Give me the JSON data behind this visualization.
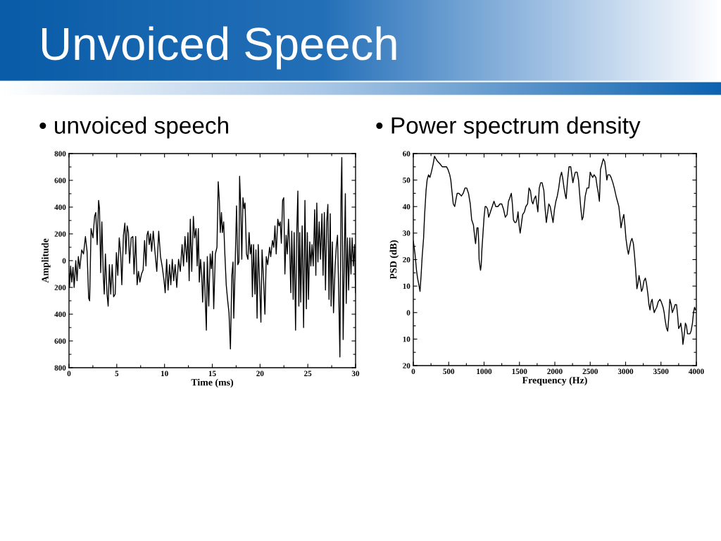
{
  "chart_data": [
    {
      "type": "line",
      "title": "Unvoiced Speech",
      "subtitle": "• unvoiced speech",
      "xlabel": "Time (ms)",
      "ylabel": "Amplitude",
      "color": "#000000",
      "line_style": "solid",
      "x": [
        0,
        0.05,
        0.17,
        0.29,
        0.42,
        0.54,
        0.71,
        0.84,
        0.98,
        1.13,
        1.33,
        1.52,
        1.72,
        1.89,
        2.06,
        2.16,
        2.31,
        2.51,
        2.68,
        2.8,
        2.95,
        3.1,
        3.19,
        3.32,
        3.44,
        3.59,
        3.69,
        3.81,
        3.98,
        4.1,
        4.23,
        4.37,
        4.52,
        4.67,
        4.84,
        4.96,
        5.11,
        5.26,
        5.41,
        5.53,
        5.7,
        5.85,
        5.95,
        6.09,
        6.22,
        6.34,
        6.51,
        6.68,
        6.81,
        6.98,
        7.13,
        7.27,
        7.42,
        7.59,
        7.76,
        7.91,
        8.06,
        8.16,
        8.28,
        8.4,
        8.53,
        8.65,
        8.82,
        9.02,
        9.19,
        9.39,
        9.58,
        9.75,
        9.95,
        10.07,
        10.22,
        10.37,
        10.52,
        10.66,
        10.81,
        10.96,
        11.11,
        11.28,
        11.47,
        11.65,
        11.84,
        11.99,
        12.14,
        12.33,
        12.46,
        12.58,
        12.7,
        12.85,
        13.02,
        13.15,
        13.3,
        13.42,
        13.54,
        13.64,
        13.77,
        13.89,
        13.99,
        14.14,
        14.23,
        14.38,
        14.48,
        14.63,
        14.78,
        14.9,
        15.02,
        15.15,
        15.32,
        15.49,
        15.62,
        15.74,
        15.84,
        15.96,
        16.06,
        16.19,
        16.31,
        16.46,
        16.6,
        16.75,
        16.9,
        17.05,
        17.17,
        17.25,
        17.37,
        17.54,
        17.67,
        17.79,
        17.86,
        17.99,
        18.09,
        18.21,
        18.33,
        18.43,
        18.58,
        18.73,
        18.85,
        18.98,
        19.1,
        19.2,
        19.32,
        19.47,
        19.57,
        19.69,
        19.81,
        19.96,
        20.09,
        20.21,
        20.36,
        20.51,
        20.65,
        20.8,
        21.0,
        21.12,
        21.3,
        21.44,
        21.56,
        21.69,
        21.86,
        21.99,
        22.11,
        22.23,
        22.36,
        22.48,
        22.6,
        22.73,
        22.85,
        22.98,
        23.1,
        23.22,
        23.32,
        23.47,
        23.57,
        23.72,
        23.84,
        23.96,
        24.06,
        24.16,
        24.26,
        24.41,
        24.56,
        24.7,
        24.85,
        24.95,
        25.07,
        25.2,
        25.32,
        25.44,
        25.57,
        25.72,
        25.84,
        25.94,
        26.06,
        26.19,
        26.33,
        26.48,
        26.6,
        26.73,
        26.85,
        26.98,
        27.1,
        27.22,
        27.35,
        27.44,
        27.57,
        27.69,
        27.86,
        27.98,
        28.11,
        28.23,
        28.36,
        28.48,
        28.56,
        28.7,
        28.83,
        28.93,
        29.02,
        29.15,
        29.27,
        29.4,
        29.52,
        29.64,
        29.77,
        29.89,
        30.0
      ],
      "values": [
        -110,
        -200,
        -40,
        -160,
        -50,
        -200,
        0,
        -150,
        30,
        -60,
        80,
        50,
        180,
        70,
        -280,
        -300,
        240,
        170,
        330,
        360,
        120,
        450,
        390,
        -90,
        290,
        -110,
        -250,
        50,
        -250,
        -340,
        -30,
        -250,
        -30,
        -270,
        -250,
        60,
        -110,
        170,
        50,
        -180,
        190,
        280,
        50,
        260,
        210,
        -20,
        170,
        180,
        -100,
        180,
        -180,
        -80,
        -160,
        -100,
        -70,
        150,
        -40,
        190,
        220,
        120,
        200,
        70,
        220,
        50,
        -80,
        220,
        30,
        -40,
        -150,
        -240,
        10,
        -220,
        -30,
        -180,
        10,
        -150,
        -30,
        -200,
        10,
        -80,
        120,
        -40,
        180,
        -10,
        210,
        -150,
        310,
        -80,
        330,
        170,
        240,
        -40,
        240,
        -160,
        10,
        -110,
        -310,
        -10,
        -220,
        -520,
        30,
        -340,
        50,
        -60,
        70,
        -360,
        50,
        100,
        590,
        450,
        210,
        360,
        210,
        290,
        60,
        -180,
        -290,
        -390,
        -660,
        -110,
        -10,
        -430,
        -110,
        410,
        -30,
        -10,
        630,
        380,
        10,
        470,
        390,
        430,
        50,
        10,
        210,
        50,
        120,
        -270,
        120,
        -250,
        80,
        -430,
        120,
        -180,
        -460,
        80,
        -130,
        -400,
        30,
        -30,
        100,
        30,
        150,
        100,
        260,
        50,
        310,
        260,
        290,
        130,
        450,
        470,
        -100,
        190,
        50,
        310,
        100,
        -240,
        220,
        -290,
        210,
        -520,
        210,
        520,
        -340,
        210,
        -310,
        260,
        -500,
        450,
        -360,
        210,
        -290,
        140,
        -40,
        120,
        -40,
        380,
        -110,
        430,
        -10,
        290,
        10,
        350,
        -110,
        360,
        -220,
        290,
        420,
        -290,
        350,
        -340,
        140,
        -390,
        -40,
        100,
        190,
        -220,
        -720,
        490,
        770,
        -590,
        80,
        500,
        -320,
        170,
        -220,
        170,
        -100,
        170,
        -40,
        120,
        -240
      ],
      "xlim": [
        0,
        30
      ],
      "xticks": [
        0,
        5,
        10,
        15,
        20,
        25,
        30
      ],
      "ylim": [
        -800,
        800
      ],
      "yticks": [
        {
          "value": -800,
          "label": "800"
        },
        {
          "value": -600,
          "label": "600"
        },
        {
          "value": -400,
          "label": "400"
        },
        {
          "value": -200,
          "label": "200"
        },
        0,
        200,
        400,
        600,
        800
      ]
    },
    {
      "type": "line",
      "subtitle": "• Power spectrum density",
      "xlabel": "Frequency (Hz)",
      "ylabel": "PSD (dB)",
      "color": "#000000",
      "line_style": "solid",
      "x": [
        0,
        15,
        25,
        45,
        60,
        75,
        95,
        110,
        125,
        145,
        160,
        180,
        195,
        215,
        235,
        255,
        280,
        300,
        320,
        345,
        380,
        410,
        445,
        470,
        490,
        515,
        530,
        545,
        565,
        585,
        605,
        620,
        645,
        680,
        705,
        730,
        755,
        780,
        805,
        825,
        850,
        870,
        880,
        900,
        915,
        925,
        930,
        950,
        960,
        970,
        985,
        1000,
        1015,
        1030,
        1050,
        1065,
        1090,
        1115,
        1140,
        1165,
        1195,
        1225,
        1250,
        1275,
        1300,
        1325,
        1345,
        1360,
        1385,
        1400,
        1415,
        1435,
        1450,
        1465,
        1480,
        1495,
        1510,
        1525,
        1545,
        1570,
        1590,
        1615,
        1635,
        1655,
        1675,
        1690,
        1710,
        1730,
        1745,
        1760,
        1780,
        1800,
        1820,
        1845,
        1860,
        1880,
        1900,
        1915,
        1935,
        1955,
        1975,
        1995,
        2015,
        2035,
        2055,
        2075,
        2095,
        2110,
        2130,
        2150,
        2160,
        2180,
        2200,
        2225,
        2240,
        2255,
        2270,
        2290,
        2315,
        2335,
        2350,
        2365,
        2385,
        2400,
        2415,
        2430,
        2455,
        2480,
        2500,
        2515,
        2535,
        2555,
        2580,
        2595,
        2615,
        2630,
        2645,
        2665,
        2685,
        2705,
        2720,
        2735,
        2750,
        2775,
        2795,
        2820,
        2840,
        2865,
        2885,
        2905,
        2925,
        2935,
        2955,
        2975,
        2990,
        3005,
        3025,
        3040,
        3060,
        3075,
        3090,
        3110,
        3125,
        3140,
        3160,
        3175,
        3190,
        3210,
        3225,
        3240,
        3260,
        3280,
        3295,
        3315,
        3330,
        3345,
        3360,
        3375,
        3390,
        3405,
        3420,
        3440,
        3460,
        3485,
        3505,
        3530,
        3545,
        3560,
        3580,
        3595,
        3610,
        3625,
        3645,
        3660,
        3675,
        3700,
        3720,
        3735,
        3750,
        3770,
        3780,
        3800,
        3810,
        3830,
        3845,
        3860,
        3875,
        3895,
        3910,
        3925,
        3945,
        3960,
        3975,
        3990
      ],
      "values": [
        27,
        24,
        22,
        16,
        13,
        11,
        8,
        14,
        21,
        28,
        37,
        46,
        50,
        52,
        51,
        53,
        56,
        59,
        58,
        57,
        56,
        55,
        55,
        55,
        54,
        52,
        50,
        46,
        41,
        40,
        43,
        45,
        45,
        44,
        45,
        47,
        47,
        45,
        41,
        35,
        33,
        28,
        26,
        32,
        32,
        26,
        20,
        16,
        18,
        24,
        30,
        36,
        40,
        40,
        39,
        36,
        38,
        40,
        42,
        40,
        40,
        41,
        41,
        39,
        36,
        37,
        42,
        43,
        45,
        41,
        35,
        34,
        34,
        35,
        38,
        33,
        30,
        33,
        37,
        38,
        40,
        41,
        47,
        46,
        42,
        41,
        43,
        44,
        41,
        38,
        47,
        49,
        49,
        46,
        40,
        34,
        38,
        41,
        40,
        37,
        34,
        39,
        42,
        44,
        47,
        51,
        53,
        51,
        47,
        44,
        43,
        50,
        55,
        55,
        52,
        49,
        51,
        53,
        53,
        50,
        45,
        40,
        35,
        36,
        40,
        44,
        47,
        47,
        53,
        52,
        51,
        52,
        51,
        48,
        45,
        42,
        54,
        56,
        58,
        57,
        54,
        50,
        52,
        52,
        51,
        49,
        47,
        44,
        42,
        40,
        35,
        32,
        35,
        37,
        33,
        28,
        24,
        22,
        25,
        27,
        28,
        26,
        22,
        17,
        9,
        11,
        14,
        11,
        8,
        9,
        12,
        13,
        11,
        7,
        3,
        1,
        4,
        5,
        2,
        0,
        1,
        2,
        4,
        5,
        4,
        2,
        0,
        -3,
        -6,
        -7,
        -2,
        5,
        3,
        0,
        1,
        3,
        3,
        -1,
        -6,
        -5,
        -4,
        -8,
        -12,
        -8,
        -4,
        -5,
        -8,
        -8,
        -8,
        -7,
        -4,
        0,
        2,
        1
      ],
      "xlim": [
        0,
        4000
      ],
      "xticks": [
        0,
        500,
        1000,
        1500,
        2000,
        2500,
        3000,
        3500,
        4000
      ],
      "ylim": [
        -20,
        60
      ],
      "yticks": [
        {
          "value": -20,
          "label": "20"
        },
        {
          "value": -10,
          "label": "10"
        },
        0,
        10,
        20,
        30,
        40,
        50,
        60
      ]
    }
  ]
}
